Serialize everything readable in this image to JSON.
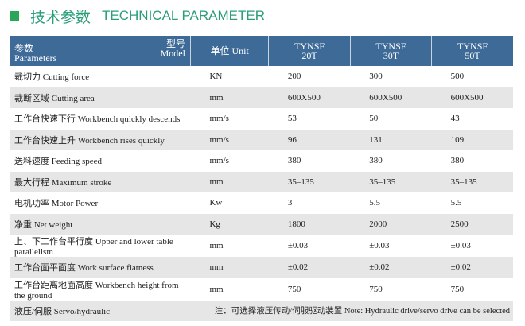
{
  "header": {
    "title_cn": "技术参数",
    "title_en": "TECHNICAL PARAMETER"
  },
  "table": {
    "corner": {
      "param_cn": "参数",
      "param_en": "Parameters",
      "model_cn": "型号",
      "model_en": "Model"
    },
    "unit_header": "单位 Unit",
    "models": [
      [
        "TYNSF",
        "20T"
      ],
      [
        "TYNSF",
        "30T"
      ],
      [
        "TYNSF",
        "50T"
      ]
    ],
    "rows": [
      [
        "裁切力 Cutting  force",
        "KN",
        "200",
        "300",
        "500"
      ],
      [
        "裁断区域 Cutting area",
        "mm",
        "600X500",
        "600X500",
        "600X500"
      ],
      [
        "工作台快速下行 Workbench quickly descends",
        "mm/s",
        "53",
        "50",
        "43"
      ],
      [
        "工作台快速上升 Workbench rises quickly",
        "mm/s",
        "96",
        "131",
        "109"
      ],
      [
        "送料速度 Feeding speed",
        "mm/s",
        "380",
        "380",
        "380"
      ],
      [
        "最大行程 Maximum stroke",
        "mm",
        "35–135",
        "35–135",
        "35–135"
      ],
      [
        "电机功率 Motor Power",
        "Kw",
        "3",
        "5.5",
        "5.5"
      ],
      [
        "净重 Net weight",
        "Kg",
        "1800",
        "2000",
        "2500"
      ],
      [
        "上、下工作台平行度 Upper and lower table parallelism",
        "mm",
        "±0.03",
        "±0.03",
        "±0.03"
      ],
      [
        "工作台面平面度  Work surface flatness",
        "mm",
        "±0.02",
        "±0.02",
        "±0.02"
      ],
      [
        "工作台距离地面高度 Workbench height from the ground",
        "mm",
        "750",
        "750",
        "750"
      ]
    ],
    "footer": {
      "label": "液压/伺服 Servo/hydraulic",
      "note": "注：可选择液压传动/伺服驱动装置 Note: Hydraulic drive/servo drive can be selected"
    }
  }
}
